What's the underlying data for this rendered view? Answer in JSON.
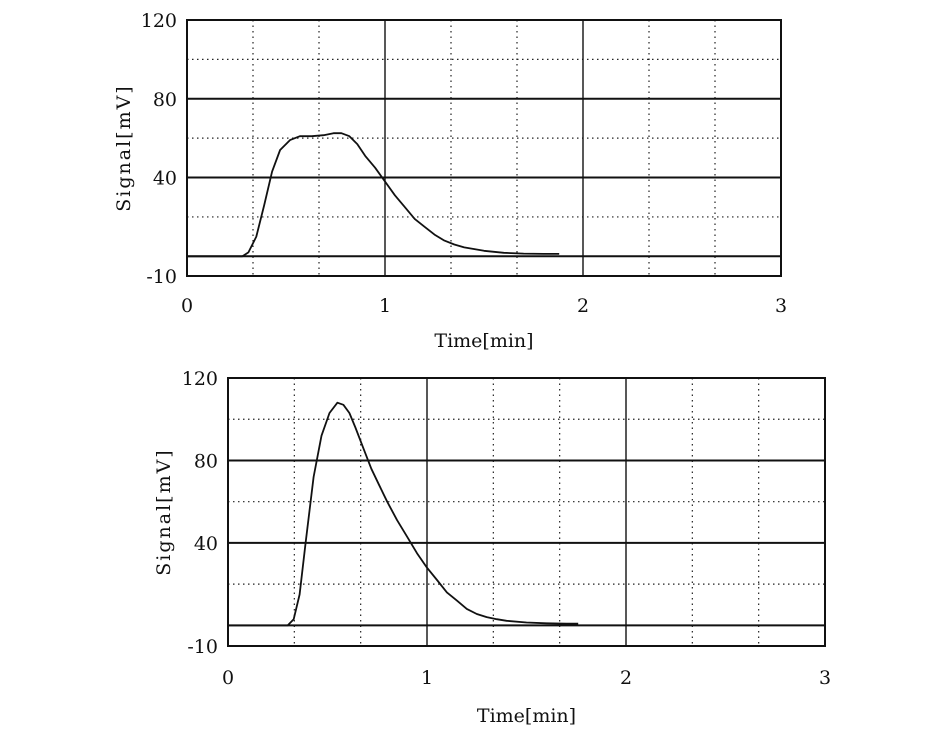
{
  "chart_data": [
    {
      "type": "line",
      "xlabel": "Time[min]",
      "ylabel": "Signal[mV]",
      "xlim": [
        0,
        3
      ],
      "ylim": [
        -10,
        120
      ],
      "x_ticks": [
        "0",
        "1",
        "2",
        "3"
      ],
      "y_ticks": [
        "120",
        "80",
        "40",
        "-10"
      ],
      "grid": true,
      "series": [
        {
          "x": [
            0.0,
            0.28,
            0.31,
            0.35,
            0.39,
            0.43,
            0.47,
            0.52,
            0.57,
            0.63,
            0.69,
            0.74,
            0.78,
            0.82,
            0.86,
            0.9,
            0.95,
            1.0,
            1.05,
            1.1,
            1.15,
            1.2,
            1.25,
            1.3,
            1.35,
            1.4,
            1.5,
            1.6,
            1.7,
            1.8,
            1.88
          ],
          "y": [
            0.0,
            0.0,
            2.0,
            10.0,
            26.0,
            43.0,
            54.0,
            59.0,
            61.0,
            61.0,
            61.5,
            62.5,
            62.5,
            61.0,
            57.0,
            51.0,
            45.0,
            38.0,
            31.0,
            25.0,
            19.0,
            15.0,
            11.0,
            8.0,
            6.0,
            4.5,
            2.8,
            1.8,
            1.4,
            1.2,
            1.2
          ],
          "color": "#111111"
        }
      ]
    },
    {
      "type": "line",
      "xlabel": "Time[min]",
      "ylabel": "Signal[mV]",
      "xlim": [
        0,
        3
      ],
      "ylim": [
        -10,
        120
      ],
      "x_ticks": [
        "0",
        "1",
        "2",
        "3"
      ],
      "y_ticks": [
        "120",
        "80",
        "40",
        "-10"
      ],
      "grid": true,
      "series": [
        {
          "x": [
            0.0,
            0.3,
            0.33,
            0.36,
            0.39,
            0.43,
            0.47,
            0.51,
            0.55,
            0.58,
            0.61,
            0.64,
            0.68,
            0.72,
            0.76,
            0.8,
            0.85,
            0.9,
            0.95,
            1.0,
            1.05,
            1.1,
            1.15,
            1.2,
            1.25,
            1.3,
            1.35,
            1.4,
            1.5,
            1.6,
            1.7,
            1.76
          ],
          "y": [
            0.0,
            0.0,
            3.0,
            15.0,
            40.0,
            72.0,
            92.0,
            103.0,
            108.0,
            107.0,
            103.0,
            96.0,
            86.0,
            76.0,
            68.0,
            60.0,
            51.0,
            43.0,
            35.0,
            28.0,
            22.0,
            16.0,
            12.0,
            8.0,
            5.5,
            4.0,
            3.0,
            2.2,
            1.4,
            1.0,
            0.8,
            0.8
          ],
          "color": "#111111"
        }
      ]
    }
  ]
}
